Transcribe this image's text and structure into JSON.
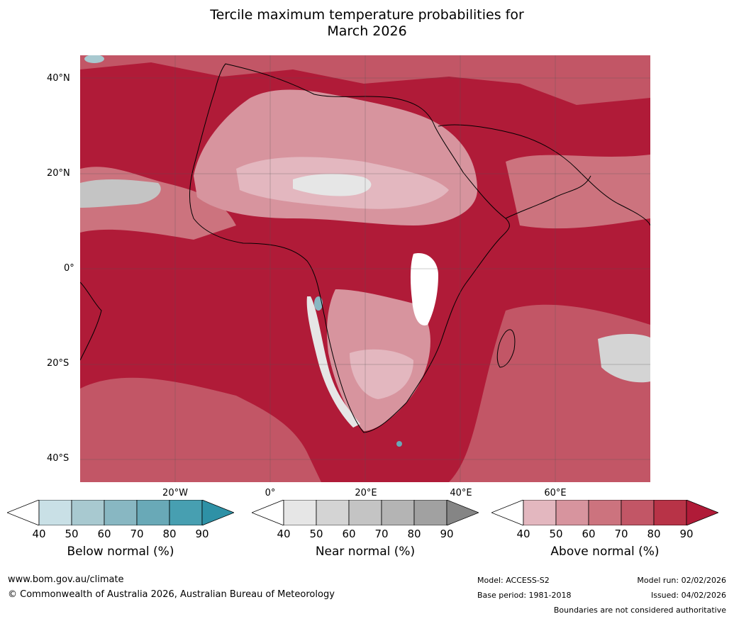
{
  "title": {
    "line1": "Tercile maximum temperature probabilities for",
    "line2": "March 2026"
  },
  "map": {
    "lat_labels": [
      "40°N",
      "20°N",
      "0°",
      "20°S",
      "40°S"
    ],
    "lon_labels": [
      "20°W",
      "0°",
      "20°E",
      "40°E",
      "60°E"
    ]
  },
  "colorbars": [
    {
      "label": "Below normal (%)",
      "ticks": [
        "40",
        "50",
        "60",
        "70",
        "80",
        "90"
      ],
      "colors": [
        "#ffffff",
        "#c9e0e6",
        "#a8c9d0",
        "#88b7c2",
        "#69a9b7",
        "#479fb1",
        "#2e91a6"
      ]
    },
    {
      "label": "Near normal (%)",
      "ticks": [
        "40",
        "50",
        "60",
        "70",
        "80",
        "90"
      ],
      "colors": [
        "#ffffff",
        "#e6e6e6",
        "#d4d4d4",
        "#c4c4c4",
        "#b4b4b4",
        "#a1a1a1",
        "#858585"
      ]
    },
    {
      "label": "Above normal (%)",
      "ticks": [
        "40",
        "50",
        "60",
        "70",
        "80",
        "90"
      ],
      "colors": [
        "#ffffff",
        "#e3b7bf",
        "#d7949e",
        "#cc737e",
        "#c25666",
        "#b83347",
        "#b01b38"
      ]
    }
  ],
  "footer": {
    "website": "www.bom.gov.au/climate",
    "copyright": "© Commonwealth of Australia 2026, Australian Bureau of Meteorology",
    "model": "Model: ACCESS-S2",
    "base_period": "Base period: 1981-2018",
    "model_run": "Model run: 02/02/2026",
    "issued": "Issued: 04/02/2026",
    "disclaimer": "Boundaries are not considered authoritative"
  }
}
